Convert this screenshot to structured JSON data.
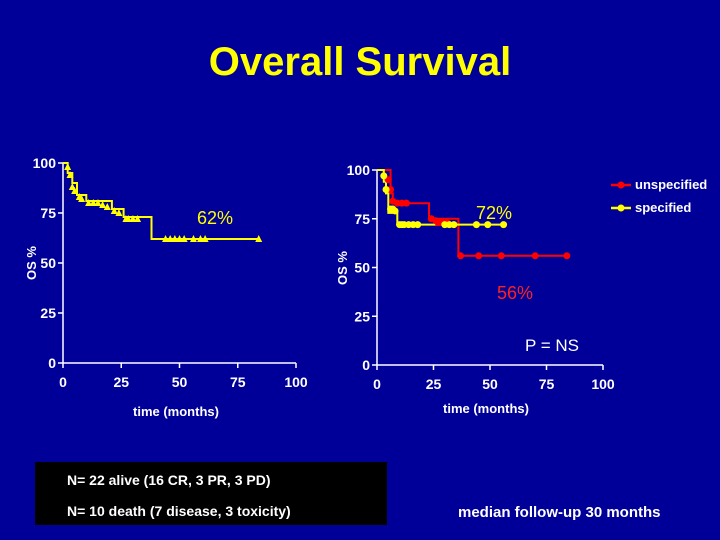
{
  "title": "Overall Survival",
  "colors": {
    "background": "#000099",
    "title": "#ffff00",
    "axis": "#ffffff",
    "unspecified": "#ff0000",
    "specified": "#ffff00"
  },
  "chart_data": [
    {
      "type": "line",
      "name": "overall-survival",
      "xlabel": "time (months)",
      "ylabel": "OS %",
      "xlim": [
        0,
        100
      ],
      "ylim": [
        0,
        100
      ],
      "xticks": [
        "0",
        "25",
        "50",
        "75",
        "100"
      ],
      "yticks": [
        "0",
        "25",
        "50",
        "75",
        "100"
      ],
      "annotation": "62%",
      "series": [
        {
          "name": "overall",
          "color": "#ffff00",
          "step": [
            [
              0,
              100
            ],
            [
              2,
              100
            ],
            [
              2,
              95
            ],
            [
              4,
              95
            ],
            [
              4,
              90
            ],
            [
              6,
              90
            ],
            [
              6,
              84
            ],
            [
              10,
              84
            ],
            [
              10,
              81
            ],
            [
              21,
              81
            ],
            [
              21,
              77
            ],
            [
              26,
              77
            ],
            [
              26,
              73
            ],
            [
              38,
              73
            ],
            [
              38,
              62
            ],
            [
              84,
              62
            ]
          ],
          "censored": [
            [
              2,
              98
            ],
            [
              3,
              94
            ],
            [
              4,
              88
            ],
            [
              5,
              86
            ],
            [
              7,
              83
            ],
            [
              8,
              82
            ],
            [
              11,
              80
            ],
            [
              13,
              80
            ],
            [
              15,
              80
            ],
            [
              17,
              79
            ],
            [
              19,
              78
            ],
            [
              22,
              76
            ],
            [
              24,
              75
            ],
            [
              27,
              72
            ],
            [
              28,
              72
            ],
            [
              30,
              72
            ],
            [
              32,
              72
            ],
            [
              44,
              62
            ],
            [
              46,
              62
            ],
            [
              48,
              62
            ],
            [
              50,
              62
            ],
            [
              52,
              62
            ],
            [
              56,
              62
            ],
            [
              59,
              62
            ],
            [
              61,
              62
            ],
            [
              84,
              62
            ]
          ]
        }
      ]
    },
    {
      "type": "line",
      "name": "survival-by-group",
      "xlabel": "time (months)",
      "ylabel": "OS %",
      "xlim": [
        0,
        100
      ],
      "ylim": [
        0,
        100
      ],
      "xticks": [
        "0",
        "25",
        "50",
        "75",
        "100"
      ],
      "yticks": [
        "0",
        "25",
        "50",
        "75",
        "100"
      ],
      "annotations": {
        "specified": "72%",
        "unspecified": "56%",
        "pvalue": "P = NS"
      },
      "series": [
        {
          "name": "unspecified",
          "color": "#ff0000",
          "step": [
            [
              0,
              100
            ],
            [
              6,
              100
            ],
            [
              6,
              88
            ],
            [
              7,
              88
            ],
            [
              7,
              83
            ],
            [
              23,
              83
            ],
            [
              23,
              75
            ],
            [
              36,
              75
            ],
            [
              36,
              56
            ],
            [
              84,
              56
            ]
          ],
          "markers": [
            [
              5,
              95
            ],
            [
              6,
              90
            ],
            [
              7,
              84
            ],
            [
              9,
              83
            ],
            [
              11,
              83
            ],
            [
              13,
              83
            ],
            [
              24,
              75
            ],
            [
              26,
              74
            ],
            [
              27,
              73
            ],
            [
              28,
              73
            ],
            [
              29,
              73
            ],
            [
              31,
              73
            ],
            [
              37,
              56
            ],
            [
              45,
              56
            ],
            [
              55,
              56
            ],
            [
              70,
              56
            ],
            [
              84,
              56
            ]
          ]
        },
        {
          "name": "specified",
          "color": "#ffff00",
          "step": [
            [
              0,
              100
            ],
            [
              3,
              100
            ],
            [
              3,
              94
            ],
            [
              4,
              94
            ],
            [
              4,
              88
            ],
            [
              5,
              88
            ],
            [
              5,
              78
            ],
            [
              9,
              78
            ],
            [
              9,
              72
            ],
            [
              56,
              72
            ]
          ],
          "markers": [
            [
              3,
              97
            ],
            [
              4,
              90
            ],
            [
              6,
              80
            ],
            [
              7,
              80
            ],
            [
              8,
              79
            ],
            [
              10,
              72
            ],
            [
              11,
              72
            ],
            [
              12,
              72
            ],
            [
              14,
              72
            ],
            [
              16,
              72
            ],
            [
              18,
              72
            ],
            [
              30,
              72
            ],
            [
              32,
              72
            ],
            [
              34,
              72
            ],
            [
              44,
              72
            ],
            [
              49,
              72
            ],
            [
              56,
              72
            ]
          ]
        }
      ],
      "legend": {
        "position": "top-right",
        "entries": [
          "unspecified",
          "specified"
        ]
      }
    }
  ],
  "notes": {
    "n_alive": "N= 22 alive (16 CR, 3 PR, 3 PD)",
    "n_death": "N= 10 death (7 disease, 3 toxicity)",
    "followup": "median follow-up 30 months"
  }
}
